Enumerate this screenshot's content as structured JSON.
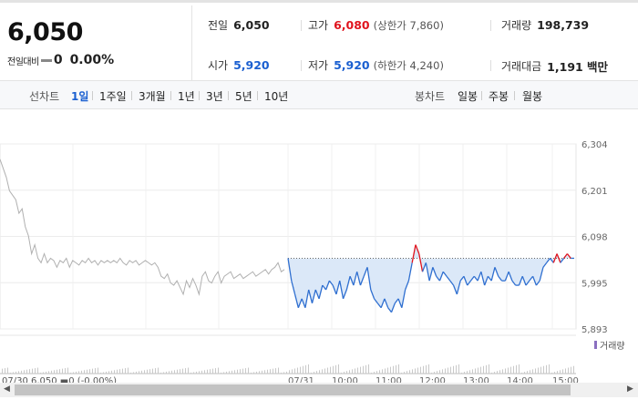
{
  "header": {
    "current_price": "6,050",
    "change_label": "전일대비",
    "change_value": "0",
    "change_pct": "0.00%",
    "stats": {
      "prev_close": {
        "label": "전일",
        "value": "6,050"
      },
      "high": {
        "label": "고가",
        "value": "6,080",
        "sub": "(상한가 7,860)"
      },
      "volume": {
        "label": "거래량",
        "value": "198,739"
      },
      "open": {
        "label": "시가",
        "value": "5,920"
      },
      "low": {
        "label": "저가",
        "value": "5,920",
        "sub": "(하한가 4,240)"
      },
      "amount": {
        "label": "거래대금",
        "value": "1,191 백만"
      }
    }
  },
  "tabs": {
    "line_label": "선차트",
    "line_periods": [
      "1일",
      "1주일",
      "3개월",
      "1년",
      "3년",
      "5년",
      "10년"
    ],
    "selected": "1일",
    "candle_label": "봉차트",
    "candle_periods": [
      "일봉",
      "주봉",
      "월봉"
    ]
  },
  "chart_data": {
    "type": "line",
    "y_ticks": [
      "6,304",
      "6,201",
      "6,098",
      "5,995",
      "5,893"
    ],
    "ylim": [
      5893,
      6304
    ],
    "prev_close": 6050,
    "volume_legend": "거래량",
    "series": [
      {
        "values": [
          6270,
          6250,
          6230,
          6200,
          6190,
          6180,
          6150,
          6160,
          6120,
          6100,
          6060,
          6080,
          6050,
          6040,
          6060,
          6040,
          6050,
          6045,
          6030,
          6045,
          6040,
          6050,
          6030,
          6045,
          6040,
          6035,
          6045,
          6040,
          6050,
          6040,
          6045,
          6035,
          6045,
          6040,
          6045,
          6040,
          6045,
          6040,
          6050,
          6040,
          6035,
          6045,
          6040,
          6045,
          6035,
          6040,
          6045,
          6040,
          6035,
          6040,
          6030,
          6010,
          6005,
          6015,
          5995,
          5990,
          6000,
          5985,
          5970,
          6000,
          5985,
          6005,
          5990,
          5970,
          6010,
          6020,
          6000,
          5995,
          6010,
          6020,
          5995,
          6010,
          6015,
          6020,
          6005,
          6010,
          6015,
          6005,
          6010,
          6015,
          6020,
          6010,
          6015,
          6020,
          6025,
          6015,
          6025,
          6030,
          6040,
          6020,
          6025
        ]
      },
      {
        "values": [
          6050,
          6000,
          5970,
          5940,
          5960,
          5940,
          5980,
          5950,
          5980,
          5960,
          5990,
          5980,
          6000,
          5990,
          5970,
          6000,
          5960,
          5980,
          6010,
          5990,
          6020,
          5990,
          6010,
          6030,
          5980,
          5960,
          5950,
          5940,
          5960,
          5940,
          5930,
          5950,
          5960,
          5940,
          5980,
          6000,
          6040,
          6080,
          6060,
          6020,
          6040,
          6000,
          6030,
          6010,
          6000,
          6020,
          6010,
          6000,
          5990,
          5970,
          6000,
          6010,
          5990,
          6000,
          6010,
          6000,
          6020,
          5990,
          6010,
          6000,
          6030,
          6010,
          6000,
          6000,
          6020,
          6000,
          5990,
          5990,
          6010,
          5990,
          6000,
          6010,
          5990,
          6000,
          6030,
          6040,
          6050,
          6040,
          6060,
          6040,
          6050,
          6060,
          6050,
          6050
        ]
      }
    ],
    "x_labels": [
      "07/30 6,050 ▬0 (-0.00%)",
      "07/31",
      "10:00",
      "11:00",
      "12:00",
      "13:00",
      "14:00",
      "15:00"
    ]
  }
}
